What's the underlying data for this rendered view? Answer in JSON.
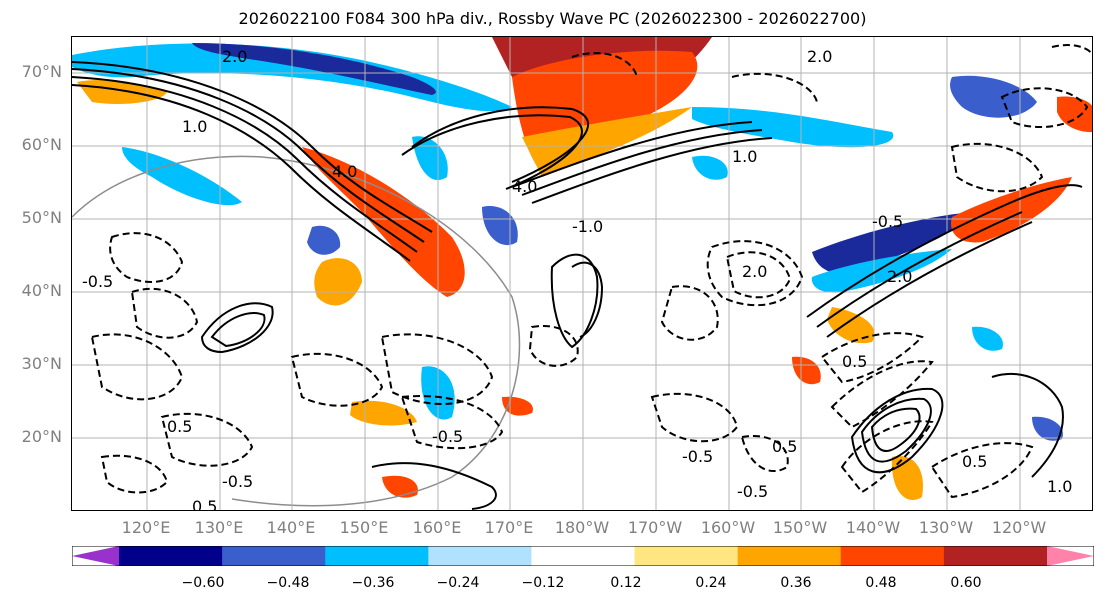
{
  "title": "2026022100 F084 300 hPa div., Rossby Wave PC (2026022300 - 2026022700)",
  "lat_labels": [
    "70°N",
    "60°N",
    "50°N",
    "40°N",
    "30°N",
    "20°N"
  ],
  "lon_labels": [
    "120°E",
    "130°E",
    "140°E",
    "150°E",
    "160°E",
    "170°E",
    "180°W",
    "170°W",
    "160°W",
    "150°W",
    "140°W",
    "130°W",
    "120°W"
  ],
  "colorbar": {
    "ticks": [
      "−0.60",
      "−0.48",
      "−0.36",
      "−0.24",
      "−0.12",
      "0.12",
      "0.24",
      "0.36",
      "0.48",
      "0.60"
    ],
    "colors": [
      "#9932cc",
      "#00008b",
      "#3a5fcd",
      "#00bfff",
      "#b0e2ff",
      "#ffffff",
      "#ffe680",
      "#ffa500",
      "#ff4500",
      "#b22222",
      "#ff82ab"
    ]
  },
  "contour_labels": [
    "2.0",
    "1.0",
    "4.0",
    "-0.5",
    "0.5",
    "-1.0",
    "2.0",
    "1.0",
    "4.0",
    "-0.5",
    "0.5",
    "-0.5",
    "2.0",
    "-0.5",
    "0.5",
    "-0.5",
    "0.5",
    "1.0",
    "-0.5",
    "2.0",
    "0.5"
  ]
}
